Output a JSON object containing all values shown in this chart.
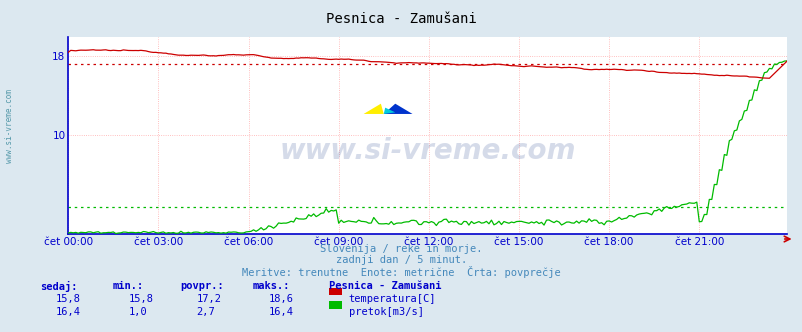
{
  "title": "Pesnica - Zamušani",
  "bg_color": "#dce8f0",
  "plot_bg_color": "#ffffff",
  "grid_color": "#ffaaaa",
  "xlabel_color": "#0000cc",
  "title_color": "#000000",
  "subtitle_lines": [
    "Slovenija / reke in morje.",
    "zadnji dan / 5 minut.",
    "Meritve: trenutne  Enote: metrične  Črta: povprečje"
  ],
  "subtitle_color": "#4488bb",
  "ylim": [
    0,
    20
  ],
  "yticks": [
    10,
    18
  ],
  "xlim": [
    0,
    287
  ],
  "xtick_labels": [
    "čet 00:00",
    "čet 03:00",
    "čet 06:00",
    "čet 09:00",
    "čet 12:00",
    "čet 15:00",
    "čet 18:00",
    "čet 21:00"
  ],
  "xtick_positions": [
    0,
    36,
    72,
    108,
    144,
    180,
    216,
    252
  ],
  "watermark": "www.si-vreme.com",
  "watermark_color": "#1a3a8a",
  "watermark_alpha": 0.18,
  "temp_color": "#cc0000",
  "flow_color": "#00bb00",
  "temp_avg": 17.2,
  "flow_avg": 2.7,
  "legend_title": "Pesnica - Zamušani",
  "legend_label1": "temperatura[C]",
  "legend_label2": "pretok[m3/s]",
  "table_headers": [
    "sedaj:",
    "min.:",
    "povpr.:",
    "maks.:"
  ],
  "table_row1": [
    "15,8",
    "15,8",
    "17,2",
    "18,6"
  ],
  "table_row2": [
    "16,4",
    "1,0",
    "2,7",
    "16,4"
  ],
  "sidebar_text": "www.si-vreme.com",
  "sidebar_color": "#5599aa",
  "axis_color": "#0000cc",
  "arrow_color": "#cc0000"
}
